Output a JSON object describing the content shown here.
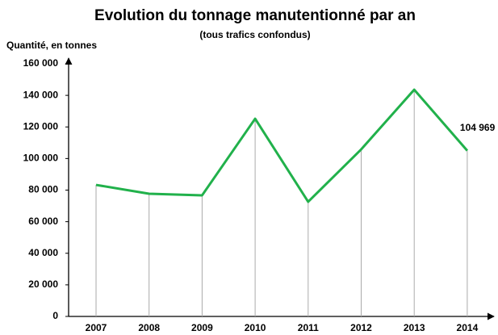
{
  "chart_data": {
    "type": "line",
    "title": "Evolution du tonnage manutentionné par an",
    "subtitle": "(tous trafics confondus)",
    "y_label": "Quantité, en tonnes",
    "categories": [
      "2007",
      "2008",
      "2009",
      "2010",
      "2011",
      "2012",
      "2013",
      "2014"
    ],
    "series": [
      {
        "name": "Tonnage",
        "color": "#21b14b",
        "values": [
          83300,
          77700,
          76700,
          125200,
          72600,
          105800,
          143600,
          104969
        ],
        "value_labels": [
          null,
          null,
          null,
          null,
          null,
          null,
          null,
          "104 969"
        ]
      }
    ],
    "ylim": [
      0,
      160000
    ],
    "yticks": [
      0,
      {
        "value": 20000,
        "label": "20 000"
      },
      {
        "value": 40000,
        "label": "40 000"
      },
      {
        "value": 60000,
        "label": "60 000"
      },
      {
        "value": 80000,
        "label": "80 000"
      },
      {
        "value": 100000,
        "label": "100 000"
      },
      {
        "value": 120000,
        "label": "120 000"
      },
      {
        "value": 140000,
        "label": "140 000"
      },
      {
        "value": 160000,
        "label": "160 000"
      }
    ]
  }
}
